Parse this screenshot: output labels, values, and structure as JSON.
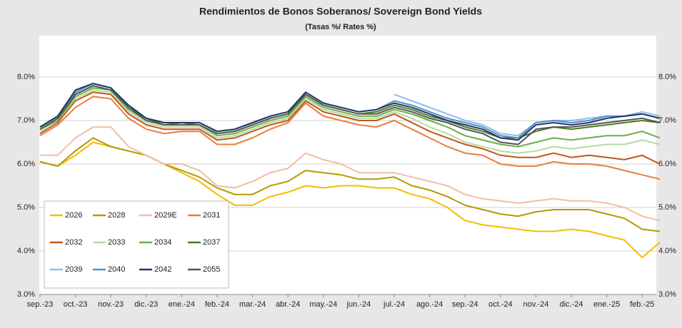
{
  "chart_data": {
    "type": "line",
    "title": "Rendimientos de Bonos Soberanos/ Sovereign Bond Yields",
    "subtitle": "(Tasas %/ Rates %)",
    "categories": [
      "sep.-23",
      null,
      "oct.-23",
      null,
      "nov.-23",
      null,
      "dic.-23",
      null,
      "ene.-24",
      null,
      "feb.-24",
      null,
      "mar.-24",
      null,
      "abr.-24",
      null,
      "may.-24",
      null,
      "jun.-24",
      null,
      "jul.-24",
      null,
      "ago.-24",
      null,
      "sep.-24",
      null,
      "oct.-24",
      null,
      "nov.-24",
      null,
      "dic.-24",
      null,
      "ene.-25",
      null,
      "feb.-25",
      null
    ],
    "ylim": [
      3,
      8.95
    ],
    "yticks": [
      {
        "value": 3,
        "label": "3.0%"
      },
      {
        "value": 4,
        "label": "4.0%"
      },
      {
        "value": 5,
        "label": "5.0%"
      },
      {
        "value": 6,
        "label": "6.0%"
      },
      {
        "value": 7,
        "label": "7.0%"
      },
      {
        "value": 8,
        "label": "8.0%"
      }
    ],
    "grid": true,
    "legend": "lower left",
    "series": [
      {
        "name": "2026",
        "color": "#f2bd00",
        "values": [
          6.05,
          5.95,
          6.2,
          6.5,
          6.4,
          6.3,
          6.2,
          6.0,
          5.8,
          5.6,
          5.3,
          5.05,
          5.05,
          5.25,
          5.35,
          5.5,
          5.45,
          5.5,
          5.5,
          5.45,
          5.45,
          5.3,
          5.2,
          5.0,
          4.7,
          4.6,
          4.55,
          4.5,
          4.45,
          4.45,
          4.5,
          4.45,
          4.35,
          4.25,
          3.85,
          4.2
        ]
      },
      {
        "name": "2028",
        "color": "#b59a00",
        "values": [
          6.05,
          5.95,
          6.3,
          6.6,
          6.4,
          6.3,
          6.2,
          6.0,
          5.85,
          5.7,
          5.45,
          5.3,
          5.3,
          5.5,
          5.6,
          5.85,
          5.8,
          5.75,
          5.65,
          5.65,
          5.7,
          5.5,
          5.4,
          5.25,
          5.05,
          4.95,
          4.85,
          4.8,
          4.9,
          4.95,
          4.95,
          4.95,
          4.85,
          4.75,
          4.5,
          4.45
        ]
      },
      {
        "name": "2029E",
        "color": "#f4bca5",
        "values": [
          6.2,
          6.2,
          6.6,
          6.85,
          6.85,
          6.4,
          6.2,
          6.0,
          6.0,
          5.85,
          5.5,
          5.45,
          5.6,
          5.8,
          5.9,
          6.25,
          6.1,
          6.0,
          5.8,
          5.8,
          5.8,
          5.7,
          5.6,
          5.5,
          5.3,
          5.2,
          5.15,
          5.1,
          5.15,
          5.2,
          5.15,
          5.15,
          5.1,
          5.0,
          4.8,
          4.7
        ]
      },
      {
        "name": "2031",
        "color": "#e97d3e",
        "values": [
          6.65,
          6.9,
          7.3,
          7.55,
          7.5,
          7.05,
          6.8,
          6.7,
          6.75,
          6.75,
          6.45,
          6.45,
          6.6,
          6.8,
          6.95,
          7.4,
          7.1,
          7.0,
          6.9,
          6.85,
          7.0,
          6.8,
          6.6,
          6.4,
          6.25,
          6.2,
          6.0,
          5.95,
          5.95,
          6.05,
          6.0,
          6.0,
          5.95,
          5.85,
          5.75,
          5.65
        ]
      },
      {
        "name": "2032",
        "color": "#c0561a",
        "values": [
          6.7,
          6.95,
          7.45,
          7.65,
          7.6,
          7.15,
          6.9,
          6.8,
          6.8,
          6.8,
          6.55,
          6.6,
          6.75,
          6.9,
          7.0,
          7.45,
          7.2,
          7.1,
          7.0,
          7.0,
          7.15,
          6.95,
          6.75,
          6.6,
          6.45,
          6.35,
          6.2,
          6.15,
          6.15,
          6.25,
          6.15,
          6.2,
          6.15,
          6.1,
          6.2,
          6.0
        ]
      },
      {
        "name": "2033",
        "color": "#b6dba2",
        "values": [
          6.75,
          7.0,
          7.5,
          7.7,
          7.65,
          7.2,
          6.95,
          6.85,
          6.85,
          6.85,
          6.6,
          6.65,
          6.8,
          6.95,
          7.05,
          7.5,
          7.25,
          7.15,
          7.05,
          7.05,
          7.2,
          7.05,
          6.85,
          6.7,
          6.5,
          6.4,
          6.3,
          6.25,
          6.3,
          6.4,
          6.35,
          6.4,
          6.45,
          6.45,
          6.55,
          6.45
        ]
      },
      {
        "name": "2034",
        "color": "#6aae4a",
        "values": [
          6.8,
          7.0,
          7.55,
          7.75,
          7.7,
          7.25,
          7.0,
          6.9,
          6.9,
          6.9,
          6.65,
          6.7,
          6.85,
          7.0,
          7.1,
          7.55,
          7.3,
          7.2,
          7.1,
          7.1,
          7.25,
          7.15,
          7.0,
          6.85,
          6.65,
          6.55,
          6.45,
          6.4,
          6.5,
          6.6,
          6.55,
          6.6,
          6.65,
          6.65,
          6.75,
          6.6
        ]
      },
      {
        "name": "2037",
        "color": "#4a7a20",
        "values": [
          6.8,
          7.05,
          7.6,
          7.8,
          7.7,
          7.3,
          7.05,
          6.9,
          6.95,
          6.9,
          6.7,
          6.75,
          6.9,
          7.05,
          7.15,
          7.6,
          7.35,
          7.25,
          7.15,
          7.2,
          7.35,
          7.25,
          7.1,
          7.0,
          6.85,
          6.75,
          6.6,
          6.6,
          6.75,
          6.85,
          6.8,
          6.85,
          6.9,
          6.95,
          7.0,
          6.95
        ]
      },
      {
        "name": "2039",
        "color": "#91bde6",
        "values": [
          null,
          null,
          null,
          null,
          null,
          null,
          null,
          null,
          null,
          null,
          null,
          null,
          null,
          null,
          null,
          null,
          null,
          null,
          null,
          null,
          7.6,
          7.45,
          7.3,
          7.15,
          7.0,
          6.9,
          6.7,
          6.65,
          6.95,
          7.0,
          7.0,
          7.05,
          7.1,
          7.1,
          7.2,
          7.1
        ]
      },
      {
        "name": "2040",
        "color": "#4f8fd0",
        "values": [
          6.85,
          7.1,
          7.65,
          7.85,
          7.75,
          7.35,
          7.05,
          6.95,
          6.95,
          6.95,
          6.75,
          6.8,
          6.95,
          7.1,
          7.2,
          7.65,
          7.4,
          7.3,
          7.2,
          7.25,
          7.45,
          7.35,
          7.2,
          7.05,
          6.95,
          6.85,
          6.65,
          6.6,
          6.95,
          7.0,
          6.95,
          7.0,
          7.1,
          7.1,
          7.15,
          7.05
        ]
      },
      {
        "name": "2042",
        "color": "#1f3864",
        "values": [
          6.85,
          7.1,
          7.7,
          7.85,
          7.75,
          7.35,
          7.05,
          6.95,
          6.95,
          6.95,
          6.75,
          6.8,
          6.95,
          7.1,
          7.2,
          7.65,
          7.4,
          7.3,
          7.2,
          7.25,
          7.4,
          7.3,
          7.15,
          7.0,
          6.9,
          6.8,
          6.6,
          6.55,
          6.9,
          6.95,
          6.9,
          6.95,
          7.05,
          7.1,
          7.15,
          7.05
        ]
      },
      {
        "name": "2055",
        "color": "#555555",
        "values": [
          6.8,
          7.05,
          7.6,
          7.8,
          7.7,
          7.3,
          7.0,
          6.9,
          6.9,
          6.9,
          6.7,
          6.75,
          6.9,
          7.05,
          7.15,
          7.6,
          7.35,
          7.25,
          7.15,
          7.15,
          7.3,
          7.2,
          7.05,
          6.95,
          6.8,
          6.7,
          6.5,
          6.45,
          6.8,
          6.85,
          6.85,
          6.9,
          6.95,
          7.0,
          7.05,
          6.95
        ]
      }
    ]
  }
}
